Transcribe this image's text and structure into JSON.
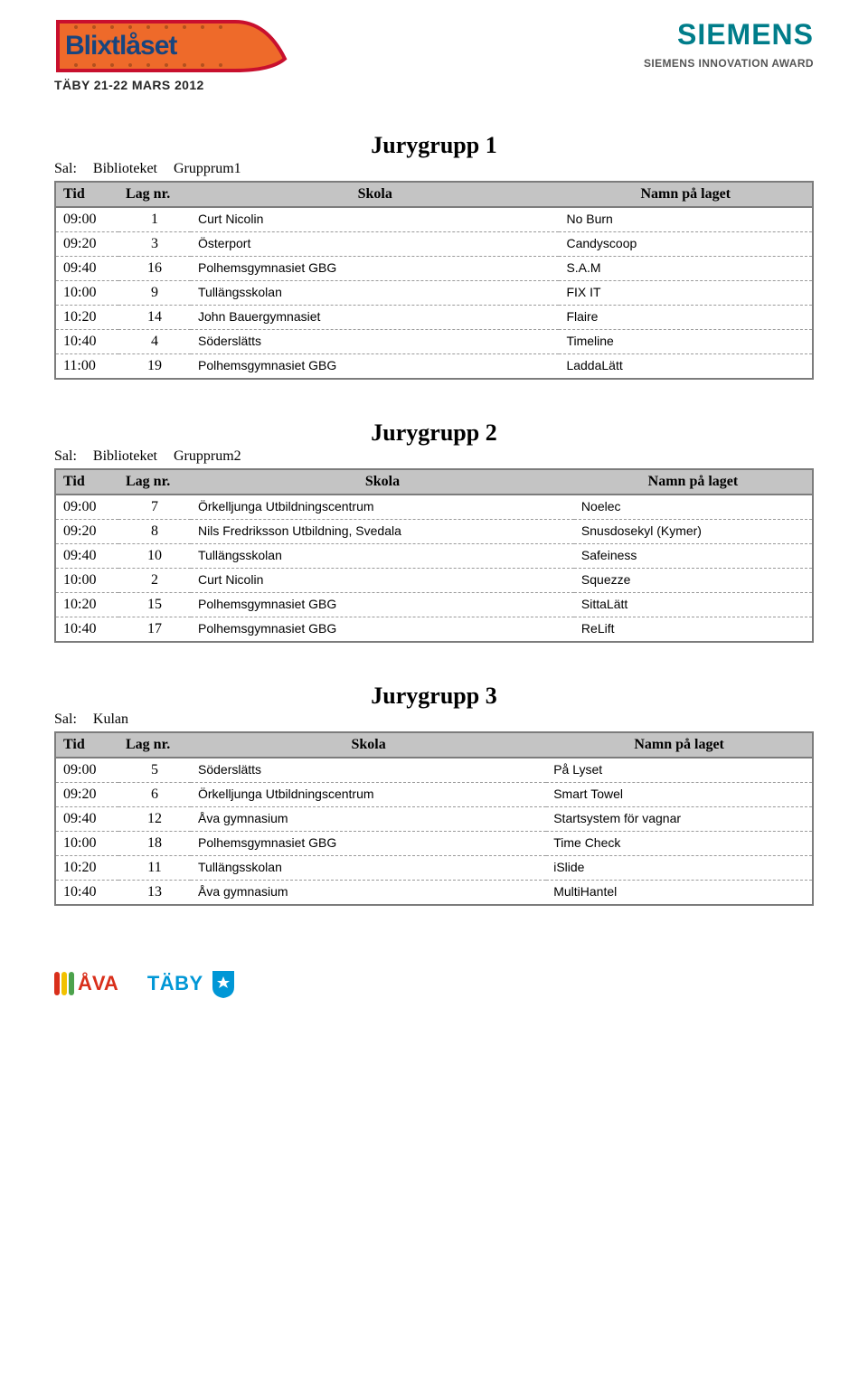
{
  "header": {
    "event_logo_text": "Blixtlåset",
    "event_subtitle": "TÄBY 21-22 MARS 2012",
    "siemens": "SIEMENS",
    "siemens_sub": "SIEMENS INNOVATION AWARD"
  },
  "table_headers": {
    "tid": "Tid",
    "lagnr": "Lag nr.",
    "skola": "Skola",
    "namn": "Namn på laget"
  },
  "room_label": "Sal:",
  "groups": [
    {
      "title": "Jurygrupp 1",
      "room_place": "Biblioteket",
      "room_name": "Grupprum1",
      "rows": [
        {
          "tid": "09:00",
          "nr": "1",
          "skola": "Curt Nicolin",
          "namn": "No Burn"
        },
        {
          "tid": "09:20",
          "nr": "3",
          "skola": "Österport",
          "namn": "Candyscoop"
        },
        {
          "tid": "09:40",
          "nr": "16",
          "skola": "Polhemsgymnasiet GBG",
          "namn": "S.A.M"
        },
        {
          "tid": "10:00",
          "nr": "9",
          "skola": "Tullängsskolan",
          "namn": "FIX IT"
        },
        {
          "tid": "10:20",
          "nr": "14",
          "skola": "John Bauergymnasiet",
          "namn": "Flaire"
        },
        {
          "tid": "10:40",
          "nr": "4",
          "skola": "Söderslätts",
          "namn": "Timeline"
        },
        {
          "tid": "11:00",
          "nr": "19",
          "skola": "Polhemsgymnasiet GBG",
          "namn": "LaddaLätt"
        }
      ]
    },
    {
      "title": "Jurygrupp 2",
      "room_place": "Biblioteket",
      "room_name": "Grupprum2",
      "rows": [
        {
          "tid": "09:00",
          "nr": "7",
          "skola": "Örkelljunga Utbildningscentrum",
          "namn": "Noelec"
        },
        {
          "tid": "09:20",
          "nr": "8",
          "skola": "Nils Fredriksson Utbildning, Svedala",
          "namn": "Snusdosekyl (Kymer)"
        },
        {
          "tid": "09:40",
          "nr": "10",
          "skola": "Tullängsskolan",
          "namn": "Safeiness"
        },
        {
          "tid": "10:00",
          "nr": "2",
          "skola": "Curt Nicolin",
          "namn": "Squezze"
        },
        {
          "tid": "10:20",
          "nr": "15",
          "skola": "Polhemsgymnasiet GBG",
          "namn": "SittaLätt"
        },
        {
          "tid": "10:40",
          "nr": "17",
          "skola": "Polhemsgymnasiet GBG",
          "namn": "ReLift"
        }
      ]
    },
    {
      "title": "Jurygrupp 3",
      "room_place": "Kulan",
      "room_name": "",
      "rows": [
        {
          "tid": "09:00",
          "nr": "5",
          "skola": "Söderslätts",
          "namn": "På Lyset"
        },
        {
          "tid": "09:20",
          "nr": "6",
          "skola": "Örkelljunga Utbildningscentrum",
          "namn": "Smart Towel"
        },
        {
          "tid": "09:40",
          "nr": "12",
          "skola": "Åva gymnasium",
          "namn": "Startsystem för vagnar"
        },
        {
          "tid": "10:00",
          "nr": "18",
          "skola": "Polhemsgymnasiet GBG",
          "namn": "Time Check"
        },
        {
          "tid": "10:20",
          "nr": "11",
          "skola": "Tullängsskolan",
          "namn": "iSlide"
        },
        {
          "tid": "10:40",
          "nr": "13",
          "skola": "Åva gymnasium",
          "namn": "MultiHantel"
        }
      ]
    }
  ],
  "footer": {
    "ava": "ÅVA",
    "taby": "TÄBY"
  },
  "colors": {
    "blixt_orange": "#ee6a2a",
    "blixt_border": "#c8102e",
    "blixt_text": "#17457f",
    "siemens": "#007d8a",
    "table_border": "#7c7c7c",
    "table_header_bg": "#c4c4c4",
    "ava_red": "#d92f1b",
    "ava_yellow": "#f2c100",
    "ava_green": "#4ca24c",
    "taby_blue": "#0097d6"
  }
}
